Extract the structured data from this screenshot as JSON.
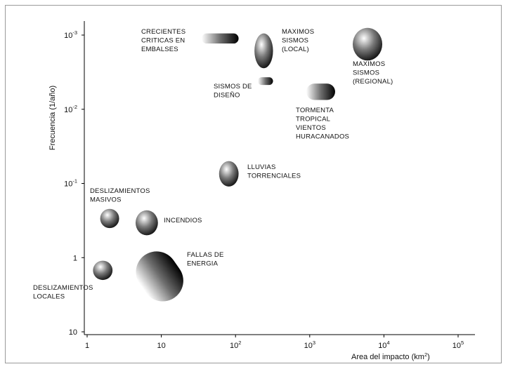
{
  "chart_data": {
    "type": "scatter",
    "title": "",
    "xlabel": "Area del impacto (km²)",
    "ylabel": "Frecuencia (1/año)",
    "x_scale": "log",
    "y_scale": "log",
    "xlim": [
      1,
      100000
    ],
    "ylim": [
      10,
      0.001
    ],
    "x_ticks": [
      {
        "value": 1,
        "base": "1",
        "exp": ""
      },
      {
        "value": 10,
        "base": "10",
        "exp": ""
      },
      {
        "value": 100,
        "base": "10",
        "exp": "2"
      },
      {
        "value": 1000,
        "base": "10",
        "exp": "3"
      },
      {
        "value": 10000,
        "base": "10",
        "exp": "4"
      },
      {
        "value": 100000,
        "base": "10",
        "exp": "5"
      }
    ],
    "y_ticks": [
      {
        "value": 0.001,
        "base": "10",
        "exp": "-3"
      },
      {
        "value": 0.01,
        "base": "10",
        "exp": "-2"
      },
      {
        "value": 0.1,
        "base": "10",
        "exp": "-1"
      },
      {
        "value": 1,
        "base": "1",
        "exp": ""
      },
      {
        "value": 10,
        "base": "10",
        "exp": ""
      }
    ],
    "grid": false,
    "legend": "none",
    "regions": [
      {
        "label": [
          "CRECIENTES",
          "CRITICAS EN",
          "EMBALSES"
        ],
        "x_range": [
          35,
          110
        ],
        "y_range": [
          0.00095,
          0.0013
        ],
        "shape": "pill"
      },
      {
        "label": [
          "MAXIMOS",
          "SISMOS",
          "(LOCAL)"
        ],
        "x_range": [
          180,
          320
        ],
        "y_range": [
          0.00095,
          0.0028
        ],
        "shape": "ellipse"
      },
      {
        "label": [
          "MAXIMOS",
          "SISMOS",
          "(REGIONAL)"
        ],
        "x_range": [
          3800,
          9500
        ],
        "y_range": [
          0.0008,
          0.0022
        ],
        "shape": "ellipse"
      },
      {
        "label": [
          "SISMOS DE",
          "DISEÑO"
        ],
        "x_range": [
          200,
          320
        ],
        "y_range": [
          0.0037,
          0.0047
        ],
        "shape": "pill"
      },
      {
        "label": [
          "TORMENTA",
          "TROPICAL",
          "VIENTOS",
          "HURACANADOS"
        ],
        "x_range": [
          900,
          2200
        ],
        "y_range": [
          0.0045,
          0.0075
        ],
        "shape": "pill"
      },
      {
        "label": [
          "LLUVIAS",
          "TORRENCIALES"
        ],
        "x_range": [
          60,
          110
        ],
        "y_range": [
          0.05,
          0.11
        ],
        "shape": "ellipse"
      },
      {
        "label": [
          "DESLIZAMIENTOS",
          "MASIVOS"
        ],
        "x_range": [
          1.5,
          2.7
        ],
        "y_range": [
          0.22,
          0.4
        ],
        "shape": "ellipse"
      },
      {
        "label": [
          "INCENDIOS"
        ],
        "x_range": [
          4.5,
          9
        ],
        "y_range": [
          0.23,
          0.5
        ],
        "shape": "ellipse"
      },
      {
        "label": [
          "FALLAS DE",
          "ENERGIA"
        ],
        "x_range": [
          5,
          18
        ],
        "y_range": [
          0.8,
          4
        ],
        "shape": "pill"
      },
      {
        "label": [
          "DESLIZAMIENTOS",
          "LOCALES"
        ],
        "x_range": [
          1.2,
          2.2
        ],
        "y_range": [
          1.1,
          2
        ],
        "shape": "ellipse"
      }
    ]
  }
}
